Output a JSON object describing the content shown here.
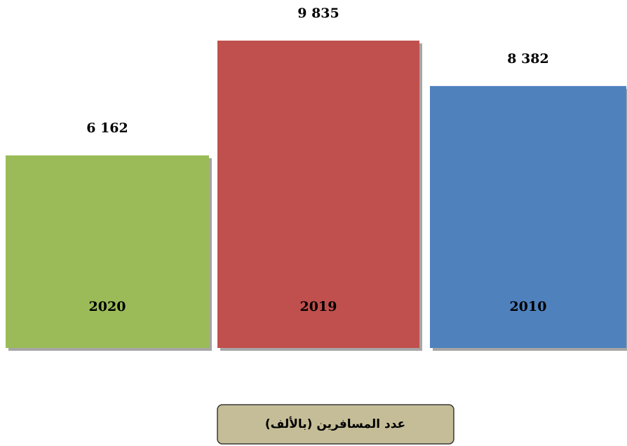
{
  "chart_data": {
    "type": "bar",
    "title": "عدد المسافرين (بالألف)",
    "categories": [
      "2020",
      "2019",
      "2010"
    ],
    "values": [
      6162,
      9835,
      8382
    ],
    "value_labels": [
      "6 162",
      "9 835",
      "8 382"
    ],
    "colors": [
      "#9bbb59",
      "#c0504d",
      "#4f81bd"
    ]
  }
}
